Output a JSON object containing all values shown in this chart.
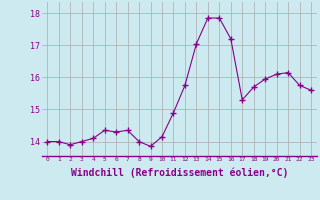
{
  "x": [
    0,
    1,
    2,
    3,
    4,
    5,
    6,
    7,
    8,
    9,
    10,
    11,
    12,
    13,
    14,
    15,
    16,
    17,
    18,
    19,
    20,
    21,
    22,
    23
  ],
  "y": [
    14.0,
    14.0,
    13.9,
    14.0,
    14.1,
    14.35,
    14.3,
    14.35,
    14.0,
    13.85,
    14.15,
    14.9,
    15.75,
    17.05,
    17.85,
    17.85,
    17.2,
    15.3,
    15.7,
    15.95,
    16.1,
    16.15,
    15.75,
    15.6
  ],
  "line_color": "#880088",
  "marker": "+",
  "marker_size": 4,
  "bg_color": "#cdeaf0",
  "grid_color": "#aaaaaa",
  "xlabel": "Windchill (Refroidissement éolien,°C)",
  "xlabel_fontsize": 7,
  "xtick_labels": [
    "0",
    "1",
    "2",
    "3",
    "4",
    "5",
    "6",
    "7",
    "8",
    "9",
    "10",
    "11",
    "12",
    "13",
    "14",
    "15",
    "16",
    "17",
    "18",
    "19",
    "20",
    "21",
    "22",
    "23"
  ],
  "ytick_labels": [
    "14",
    "15",
    "16",
    "17",
    "18"
  ],
  "ytick_values": [
    14,
    15,
    16,
    17,
    18
  ],
  "ylim": [
    13.55,
    18.35
  ],
  "xlim": [
    -0.5,
    23.5
  ]
}
